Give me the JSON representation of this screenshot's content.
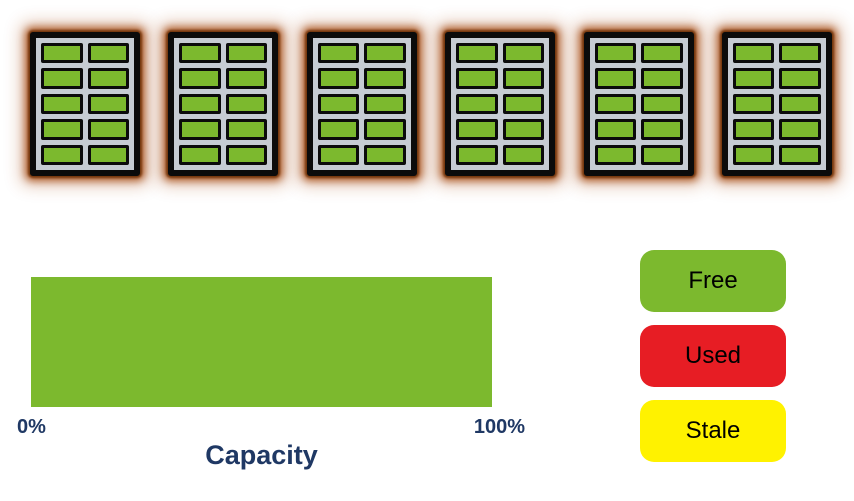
{
  "colors": {
    "free_green": "#7CB92E",
    "used_red": "#E71D24",
    "stale_yellow": "#FFF200",
    "label_navy": "#1F3864",
    "rack_frame_black": "#0B0B0B",
    "rack_panel_silver": "#C6CCD3",
    "rack_glow_orange": "#A5490F",
    "background_white": "#FFFFFF"
  },
  "racks": {
    "count": 6,
    "rows": 5,
    "columns": 2,
    "cells_per_rack": 10,
    "cell_state": "free"
  },
  "capacity_bar": {
    "title": "Capacity",
    "min_label": "0%",
    "max_label": "100%",
    "segments": [
      {
        "state": "Free",
        "value": 100,
        "color": "#7CB92E"
      }
    ]
  },
  "legend": {
    "items": [
      {
        "label": "Free",
        "color": "#7CB92E"
      },
      {
        "label": "Used",
        "color": "#E71D24"
      },
      {
        "label": "Stale",
        "color": "#FFF200"
      }
    ]
  }
}
